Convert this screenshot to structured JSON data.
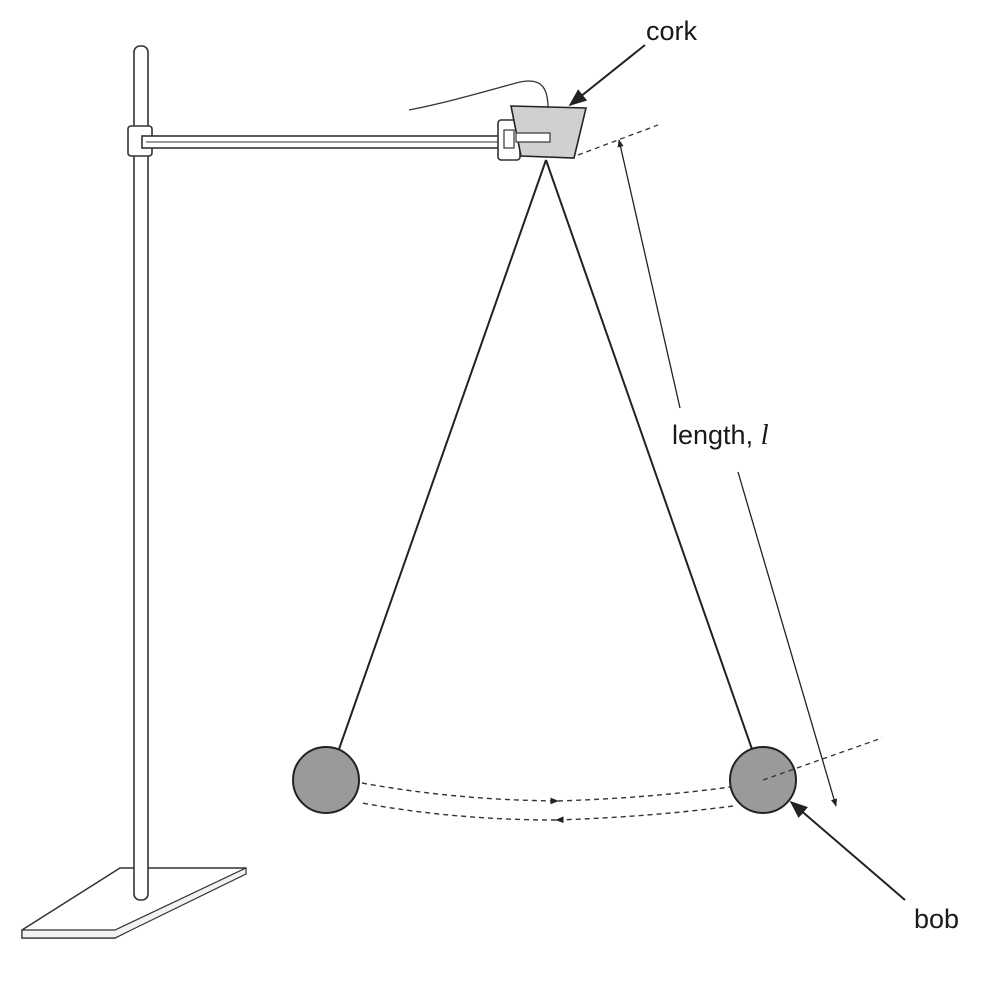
{
  "labels": {
    "cork": "cork",
    "length": "length, ",
    "length_symbol": "l",
    "bob": "bob"
  },
  "colors": {
    "line": "#222222",
    "bob_fill": "#9a9a9a",
    "cork_fill": "#d0d0d0",
    "stand_fill": "#ffffff"
  }
}
